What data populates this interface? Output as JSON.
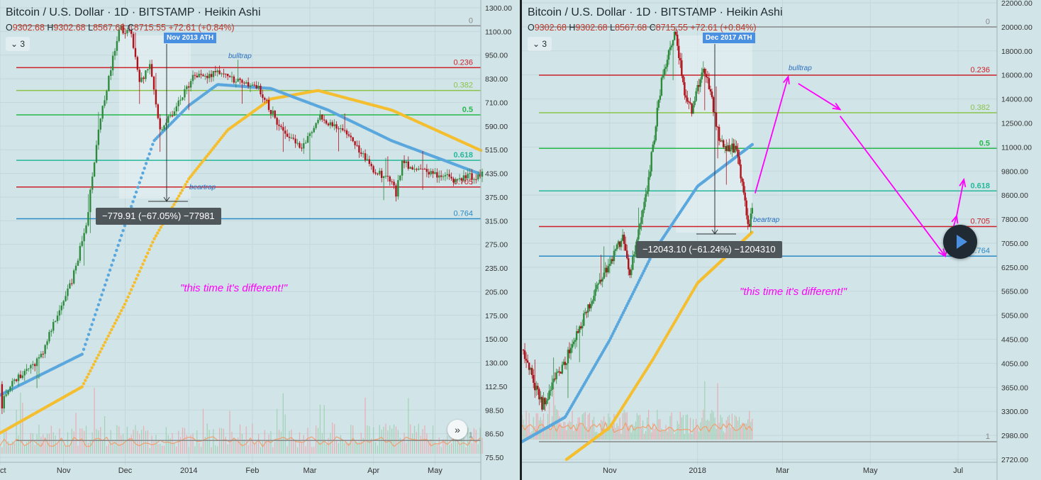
{
  "colors": {
    "background": "#d1e4e8",
    "up_candle": "#2e8b3e",
    "down_candle": "#b0121b",
    "ma_blue": "#5aa7dd",
    "ma_yellow": "#f5be2e",
    "vol_ma": "#f0a070",
    "annotation": "#ff00ff",
    "fib_red": "#cc2128",
    "fib_lightgreen": "#8bc34a",
    "fib_green": "#26b84a",
    "fib_teal": "#26b89a",
    "fib_blue": "#2a8bc5",
    "fib_gray": "#888888"
  },
  "panels": [
    {
      "title": "Bitcoin / U.S. Dollar · 1D · BITSTAMP · Heikin Ashi",
      "ohlc": {
        "o": "9302.68",
        "h": "9302.68",
        "l": "8567.68",
        "c": "8715.55",
        "chg": "+72.61 (+0.84%)"
      },
      "indicator_count": "3",
      "ath_label": "Nov 2013 ATH",
      "measure_text": "−779.91 (−67.05%) −77981",
      "quote": "\"this time it's different!\"",
      "bulltrap_label": "bulltrap",
      "beartrap_label": "beartrap",
      "price_axis_labels": [
        "1300.00",
        "1100.00",
        "950.00",
        "830.00",
        "710.00",
        "590.00",
        "515.00",
        "435.00",
        "375.00",
        "315.00",
        "275.00",
        "235.00",
        "205.00",
        "175.00",
        "150.00",
        "130.00",
        "112.50",
        "98.50",
        "86.50",
        "75.50"
      ],
      "time_axis_labels": [
        "Oct",
        "Nov",
        "Dec",
        "2014",
        "Feb",
        "Mar",
        "Apr",
        "May"
      ]
    },
    {
      "title": "Bitcoin / U.S. Dollar · 1D · BITSTAMP · Heikin Ashi",
      "ohlc": {
        "o": "9302.68",
        "h": "9302.68",
        "l": "8567.68",
        "c": "8715.55",
        "chg": "+72.61 (+0.84%)"
      },
      "indicator_count": "3",
      "ath_label": "Dec 2017 ATH",
      "measure_text": "−12043.10 (−61.24%) −1204310",
      "quote": "\"this time it's different!\"",
      "bulltrap_label": "bulltrap",
      "beartrap_label": "beartrap",
      "price_axis_labels": [
        "22000.00",
        "20000.00",
        "18000.00",
        "16000.00",
        "14000.00",
        "12500.00",
        "11000.00",
        "9800.00",
        "8600.00",
        "7800.00",
        "7050.00",
        "6250.00",
        "5650.00",
        "5050.00",
        "4450.00",
        "4050.00",
        "3650.00",
        "3300.00",
        "2980.00",
        "2720.00"
      ],
      "time_axis_labels": [
        "Nov",
        "2018",
        "Mar",
        "May",
        "Jul"
      ]
    }
  ],
  "chart_data": [
    {
      "type": "candlestick",
      "title": "Bitcoin / U.S. Dollar · 1D · BITSTAMP · Heikin Ashi",
      "scale": "log",
      "ylim": [
        75.5,
        1300
      ],
      "x_range": [
        "2013-10-01",
        "2014-05-24"
      ],
      "keypoints": [
        {
          "date": "2013-10-01",
          "price": 120
        },
        {
          "date": "2013-10-02",
          "price": 105
        },
        {
          "date": "2013-10-05",
          "price": 118
        },
        {
          "date": "2013-10-20",
          "price": 140
        },
        {
          "date": "2013-11-05",
          "price": 230
        },
        {
          "date": "2013-11-12",
          "price": 330
        },
        {
          "date": "2013-11-18",
          "price": 600
        },
        {
          "date": "2013-11-28",
          "price": 1150
        },
        {
          "date": "2013-12-04",
          "price": 1100
        },
        {
          "date": "2013-12-08",
          "price": 800
        },
        {
          "date": "2013-12-13",
          "price": 900
        },
        {
          "date": "2013-12-18",
          "price": 600
        },
        {
          "date": "2013-12-25",
          "price": 680
        },
        {
          "date": "2014-01-03",
          "price": 830
        },
        {
          "date": "2014-01-13",
          "price": 860
        },
        {
          "date": "2014-01-25",
          "price": 820
        },
        {
          "date": "2014-02-05",
          "price": 770
        },
        {
          "date": "2014-02-15",
          "price": 600
        },
        {
          "date": "2014-02-25",
          "price": 530
        },
        {
          "date": "2014-03-05",
          "price": 650
        },
        {
          "date": "2014-03-20",
          "price": 580
        },
        {
          "date": "2014-04-01",
          "price": 470
        },
        {
          "date": "2014-04-10",
          "price": 430
        },
        {
          "date": "2014-04-12",
          "price": 400
        },
        {
          "date": "2014-04-15",
          "price": 490
        },
        {
          "date": "2014-04-25",
          "price": 460
        },
        {
          "date": "2014-05-10",
          "price": 440
        },
        {
          "date": "2014-05-24",
          "price": 450
        }
      ],
      "ma_blue_keypoints": [
        {
          "date": "2013-10-01",
          "price": 112
        },
        {
          "date": "2013-11-10",
          "price": 145
        },
        {
          "date": "2013-12-01",
          "price": 330
        },
        {
          "date": "2013-12-15",
          "price": 560
        },
        {
          "date": "2014-01-01",
          "price": 700
        },
        {
          "date": "2014-01-15",
          "price": 800
        },
        {
          "date": "2014-02-10",
          "price": 780
        },
        {
          "date": "2014-03-10",
          "price": 680
        },
        {
          "date": "2014-04-10",
          "price": 560
        },
        {
          "date": "2014-05-24",
          "price": 452
        }
      ],
      "ma_yellow_keypoints": [
        {
          "date": "2013-10-01",
          "price": 88
        },
        {
          "date": "2013-11-10",
          "price": 118
        },
        {
          "date": "2013-12-01",
          "price": 200
        },
        {
          "date": "2013-12-15",
          "price": 300
        },
        {
          "date": "2014-01-01",
          "price": 440
        },
        {
          "date": "2014-01-20",
          "price": 600
        },
        {
          "date": "2014-02-10",
          "price": 730
        },
        {
          "date": "2014-03-05",
          "price": 770
        },
        {
          "date": "2014-04-10",
          "price": 680
        },
        {
          "date": "2014-05-24",
          "price": 525
        }
      ],
      "fib_levels": [
        {
          "label": "0",
          "price": 1160,
          "color": "#888888"
        },
        {
          "label": "0.236",
          "price": 890,
          "color": "#cc2128"
        },
        {
          "label": "0.382",
          "price": 770,
          "color": "#8bc34a"
        },
        {
          "label": "0.5",
          "price": 660,
          "color": "#26b84a"
        },
        {
          "label": "0.618",
          "price": 495,
          "color": "#26b89a"
        },
        {
          "label": "0.705",
          "price": 418,
          "color": "#cc2128"
        },
        {
          "label": "0.764",
          "price": 342,
          "color": "#2a8bc5"
        },
        {
          "label": "1",
          "price": 84,
          "color": "#888888"
        }
      ]
    },
    {
      "type": "candlestick",
      "title": "Bitcoin / U.S. Dollar · 1D · BITSTAMP · Heikin Ashi",
      "scale": "log",
      "ylim": [
        2720,
        22000
      ],
      "x_range": [
        "2017-09-01",
        "2018-07-31"
      ],
      "keypoints": [
        {
          "date": "2017-09-01",
          "price": 4500
        },
        {
          "date": "2017-09-15",
          "price": 3500
        },
        {
          "date": "2017-09-30",
          "price": 4200
        },
        {
          "date": "2017-10-20",
          "price": 5700
        },
        {
          "date": "2017-11-10",
          "price": 7500
        },
        {
          "date": "2017-11-15",
          "price": 6400
        },
        {
          "date": "2017-11-28",
          "price": 9800
        },
        {
          "date": "2017-12-07",
          "price": 15500
        },
        {
          "date": "2017-12-17",
          "price": 19300
        },
        {
          "date": "2017-12-22",
          "price": 15000
        },
        {
          "date": "2017-12-28",
          "price": 13500
        },
        {
          "date": "2018-01-05",
          "price": 16500
        },
        {
          "date": "2018-01-09",
          "price": 15000
        },
        {
          "date": "2018-01-17",
          "price": 11500
        },
        {
          "date": "2018-01-28",
          "price": 11300
        },
        {
          "date": "2018-02-06",
          "price": 7800
        },
        {
          "date": "2018-02-08",
          "price": 8600
        }
      ],
      "ma_blue_keypoints": [
        {
          "date": "2017-09-01",
          "price": 2950
        },
        {
          "date": "2017-10-01",
          "price": 3300
        },
        {
          "date": "2017-11-01",
          "price": 4700
        },
        {
          "date": "2017-12-01",
          "price": 7000
        },
        {
          "date": "2018-01-01",
          "price": 9500
        },
        {
          "date": "2018-02-08",
          "price": 11500
        }
      ],
      "ma_yellow_keypoints": [
        {
          "date": "2017-10-02",
          "price": 2720
        },
        {
          "date": "2017-11-01",
          "price": 3150
        },
        {
          "date": "2017-12-01",
          "price": 4300
        },
        {
          "date": "2018-01-01",
          "price": 6100
        },
        {
          "date": "2018-02-08",
          "price": 7700
        }
      ],
      "projection_path": [
        {
          "date": "2018-02-10",
          "price": 9200
        },
        {
          "date": "2018-03-05",
          "price": 15700
        },
        {
          "date": "2018-03-12",
          "price": 15200
        },
        {
          "date": "2018-04-10",
          "price": 13500
        },
        {
          "date": "2018-04-10",
          "price": 13100
        },
        {
          "date": "2018-06-22",
          "price": 6900
        },
        {
          "date": "2018-06-30",
          "price": 8300
        },
        {
          "date": "2018-07-05",
          "price": 9800
        }
      ],
      "fib_levels": [
        {
          "label": "0",
          "price": 19700,
          "color": "#888888"
        },
        {
          "label": "0.236",
          "price": 15800,
          "color": "#cc2128"
        },
        {
          "label": "0.382",
          "price": 13300,
          "color": "#8bc34a"
        },
        {
          "label": "0.5",
          "price": 11300,
          "color": "#26b84a"
        },
        {
          "label": "0.618",
          "price": 9300,
          "color": "#26b89a"
        },
        {
          "label": "0.705",
          "price": 7900,
          "color": "#cc2128"
        },
        {
          "label": "0.764",
          "price": 6900,
          "color": "#2a8bc5"
        },
        {
          "label": "1",
          "price": 2950,
          "color": "#888888"
        }
      ]
    }
  ]
}
